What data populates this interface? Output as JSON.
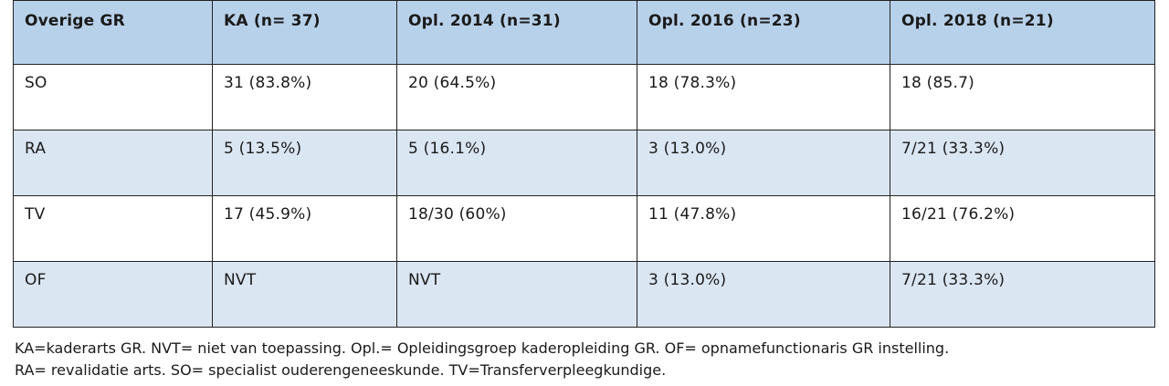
{
  "table": {
    "headers": [
      "Overige GR",
      "KA (n= 37)",
      "Opl. 2014 (n=31)",
      "Opl. 2016 (n=23)",
      "Opl. 2018 (n=21)"
    ],
    "rows": [
      [
        "SO",
        "31 (83.8%)",
        "20 (64.5%)",
        "18 (78.3%)",
        "18 (85.7)"
      ],
      [
        "RA",
        "5 (13.5%)",
        "5 (16.1%)",
        "3 (13.0%)",
        "7/21 (33.3%)"
      ],
      [
        "TV",
        "17 (45.9%)",
        "18/30 (60%)",
        "11 (47.8%)",
        "16/21 (76.2%)"
      ],
      [
        "OF",
        "NVT",
        "NVT",
        "3 (13.0%)",
        "7/21 (33.3%)"
      ]
    ],
    "colors": {
      "header_bg": "#b8d1ea",
      "alt_row_bg": "#dbe6f3",
      "row_bg": "#ffffff",
      "border": "#222222"
    }
  },
  "footnotes": [
    "KA=kaderarts GR. NVT= niet van toepassing. Opl.= Opleidingsgroep kaderopleiding GR. OF= opnamefunctionaris GR instelling.",
    "RA= revalidatie arts. SO= specialist ouderengeneeskunde. TV=Transferverpleegkundige."
  ]
}
